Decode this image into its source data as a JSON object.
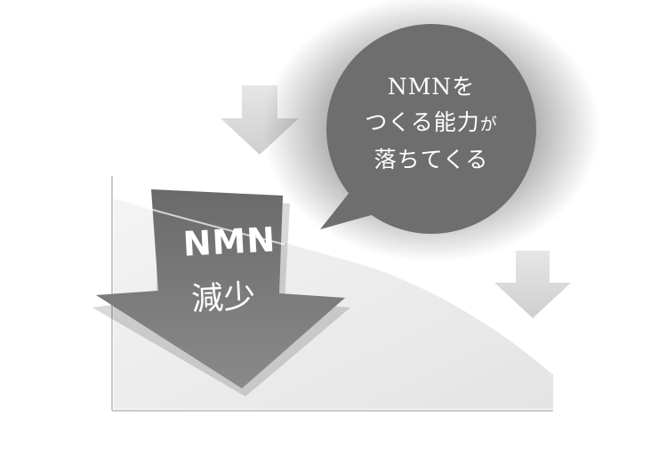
{
  "speech_bubble": {
    "line1": "NMNを",
    "line2_main": "つくる能力",
    "line2_small": "が",
    "line3": "落ちてくる"
  },
  "main_arrow": {
    "label_top": "NMN",
    "label_bottom": "減少"
  },
  "colors": {
    "bubble_fill": "#6e6e6e",
    "main_arrow_fill": "#7a7a7a",
    "small_arrow_fill": "#dcdcdc",
    "chart_area_fill": "#efefef"
  }
}
